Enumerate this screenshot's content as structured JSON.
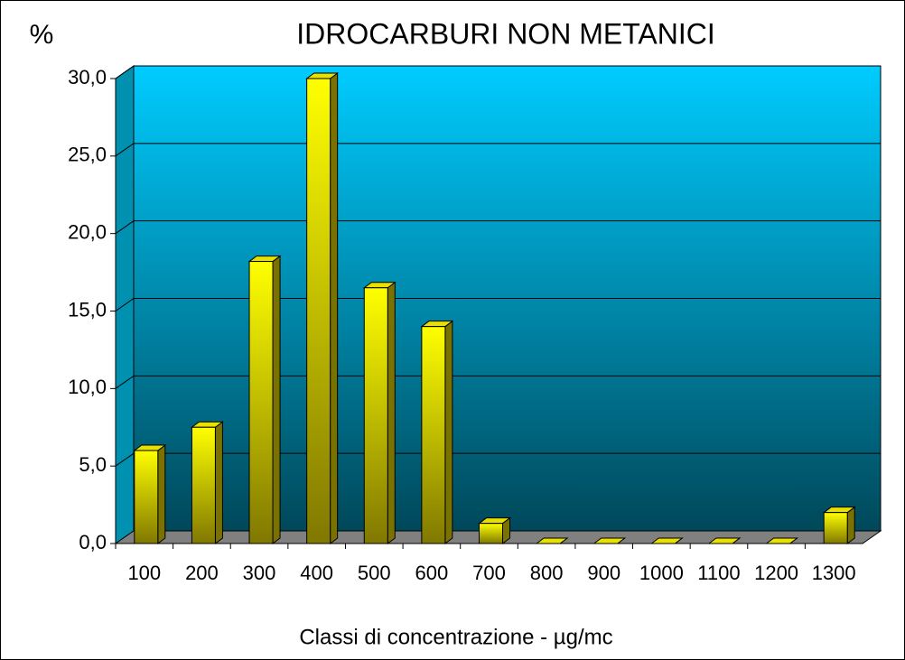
{
  "chart_data": {
    "type": "bar3d",
    "title": "IDROCARBURI NON METANICI",
    "y_label": "%",
    "x_label": "Classi di concentrazione - µg/mc",
    "categories": [
      "100",
      "200",
      "300",
      "400",
      "500",
      "600",
      "700",
      "800",
      "900",
      "1000",
      "1100",
      "1200",
      "1300"
    ],
    "values": [
      6.0,
      7.5,
      18.2,
      30.0,
      16.5,
      14.0,
      1.3,
      0,
      0,
      0,
      0,
      0,
      2.0
    ],
    "color": "#ffff00",
    "ylim": [
      0,
      30
    ],
    "yticks": [
      {
        "value": 0,
        "label": "0,0"
      },
      {
        "value": 5,
        "label": "5,0"
      },
      {
        "value": 10,
        "label": "10,0"
      },
      {
        "value": 15,
        "label": "15,0"
      },
      {
        "value": 20,
        "label": "20,0"
      },
      {
        "value": 25,
        "label": "25,0"
      },
      {
        "value": 30,
        "label": "30,0"
      }
    ],
    "grid": true
  }
}
